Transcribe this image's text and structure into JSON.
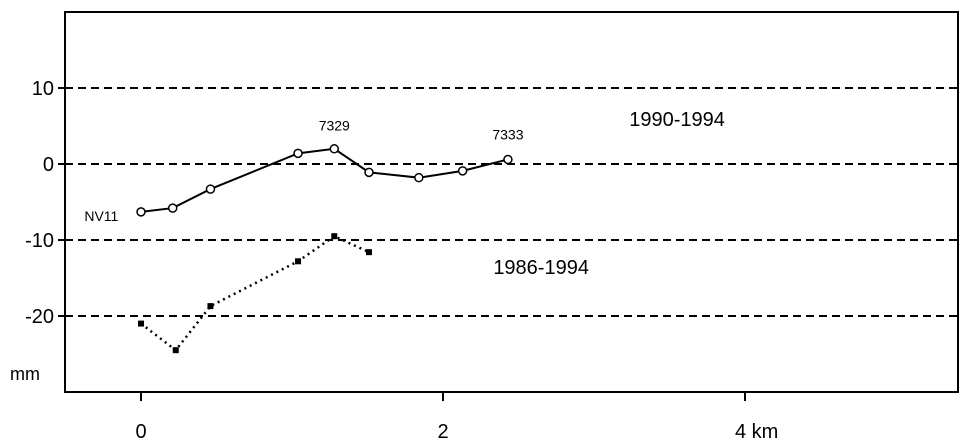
{
  "chart_data": {
    "type": "line",
    "title": "",
    "xlabel": "",
    "ylabel": "",
    "x_unit_label": "km",
    "y_unit_label": "mm",
    "xlim": [
      -0.5,
      5.4
    ],
    "ylim": [
      -30,
      20
    ],
    "xticks": [
      {
        "value": 0,
        "label": "0"
      },
      {
        "value": 2,
        "label": "2"
      },
      {
        "value": 4,
        "label": "4 km"
      }
    ],
    "yticks": [
      {
        "value": 10,
        "label": "10"
      },
      {
        "value": 0,
        "label": "0"
      },
      {
        "value": -10,
        "label": "-10"
      },
      {
        "value": -20,
        "label": "-20"
      }
    ],
    "gridlines_y": [
      10,
      0,
      -10,
      -20
    ],
    "grid_style": "dashed horizontal",
    "series": [
      {
        "name": "1990-1994",
        "style": "solid line, open circle markers",
        "color": "#000000",
        "x": [
          0.0,
          0.21,
          0.46,
          1.04,
          1.28,
          1.51,
          1.84,
          2.13,
          2.43
        ],
        "y": [
          -6.3,
          -5.8,
          -3.3,
          1.4,
          2.0,
          -1.1,
          -1.8,
          -0.9,
          0.6
        ]
      },
      {
        "name": "1986-1994",
        "style": "dotted line, filled square markers",
        "color": "#000000",
        "x": [
          0.0,
          0.23,
          0.46,
          1.04,
          1.28,
          1.51
        ],
        "y": [
          -21.0,
          -24.5,
          -18.7,
          -12.8,
          -9.5,
          -11.6
        ]
      }
    ],
    "annotations": [
      {
        "text": "NV11",
        "x": -0.15,
        "y": -7.5
      },
      {
        "text": "7329",
        "x": 1.28,
        "y": 4.4
      },
      {
        "text": "7333",
        "x": 2.43,
        "y": 3.2
      }
    ],
    "series_labels": [
      {
        "text": "1990-1994",
        "x": 3.55,
        "y": 5.0
      },
      {
        "text": "1986-1994",
        "x": 2.65,
        "y": -14.5
      }
    ]
  }
}
